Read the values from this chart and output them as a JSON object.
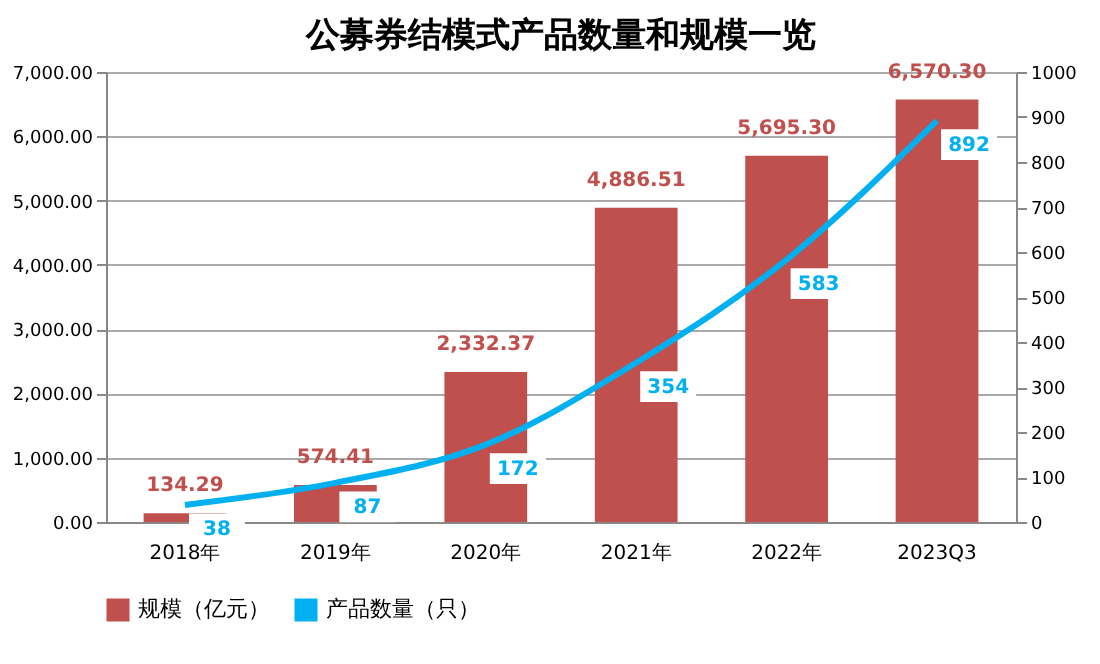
{
  "chart_data": {
    "type": "bar",
    "title": "公募券结模式产品数量和规模一览",
    "categories": [
      "2018年",
      "2019年",
      "2020年",
      "2021年",
      "2022年",
      "2023Q3"
    ],
    "series": [
      {
        "name": "规模（亿元）",
        "color": "#c0504d",
        "values": [
          134.29,
          574.41,
          2332.37,
          4886.51,
          5695.3,
          6570.3
        ],
        "value_labels": [
          "134.29",
          "574.41",
          "2,332.37",
          "4,886.51",
          "5,695.30",
          "6,570.30"
        ]
      },
      {
        "name": "产品数量（只）",
        "color": "#00b0f0",
        "type": "line",
        "axis": "y2",
        "values": [
          38,
          87,
          172,
          354,
          583,
          892
        ],
        "value_labels": [
          "38",
          "87",
          "172",
          "354",
          "583",
          "892"
        ]
      }
    ],
    "ylim": [
      0,
      7000
    ],
    "yticks": [
      {
        "value": 0,
        "label": "0.00"
      },
      {
        "value": 1000,
        "label": "1,000.00"
      },
      {
        "value": 2000,
        "label": "2,000.00"
      },
      {
        "value": 3000,
        "label": "3,000.00"
      },
      {
        "value": 4000,
        "label": "4,000.00"
      },
      {
        "value": 5000,
        "label": "5,000.00"
      },
      {
        "value": 6000,
        "label": "6,000.00"
      },
      {
        "value": 7000,
        "label": "7,000.00"
      }
    ],
    "y2lim": [
      0,
      1000
    ],
    "y2ticks": [
      0,
      100,
      200,
      300,
      400,
      500,
      600,
      700,
      800,
      900,
      {
        "value": 1000,
        "label": "1000"
      }
    ],
    "grid": "y",
    "legend": "bottom",
    "marker": "none",
    "line_style": "solid"
  }
}
